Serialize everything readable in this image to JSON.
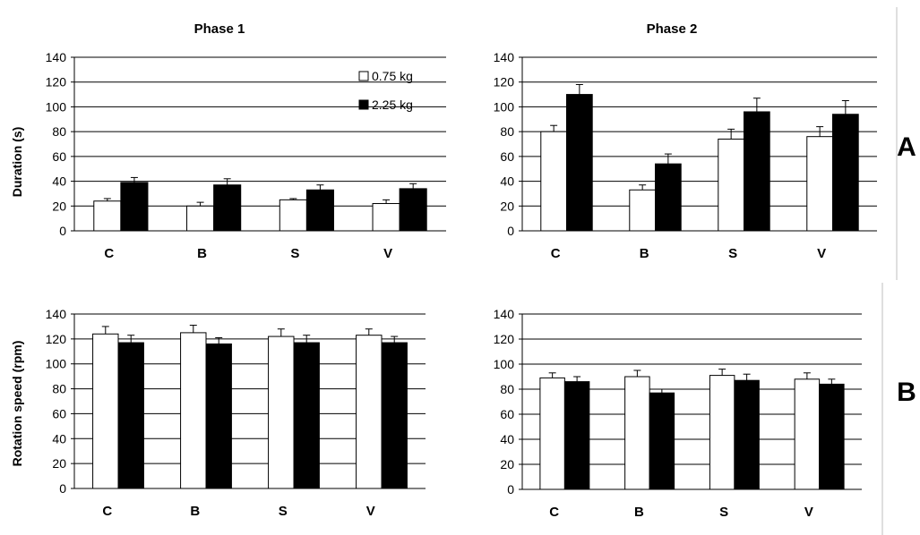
{
  "figure": {
    "panel_labels": [
      "A",
      "B"
    ],
    "col_titles": [
      "Phase 1",
      "Phase 2"
    ],
    "row_ylabels": [
      "Duration (s)",
      "Rotation speed (rpm)"
    ],
    "legend": [
      "0.75 kg",
      "2.25 kg"
    ]
  },
  "colors": {
    "series_a": "#ffffff",
    "series_b": "#000000",
    "stroke": "#000000",
    "grid": "#000000"
  },
  "chart_data": [
    {
      "type": "bar",
      "title": "Phase 1",
      "ylabel": "Duration (s)",
      "xlabel": "",
      "categories": [
        "C",
        "B",
        "S",
        "V"
      ],
      "ylim": [
        0,
        140
      ],
      "yticks": [
        0,
        20,
        40,
        60,
        80,
        100,
        120,
        140
      ],
      "grid": true,
      "legend_position": "top-right",
      "series": [
        {
          "name": "0.75 kg",
          "values": [
            24,
            20,
            25,
            22
          ],
          "errors": [
            2,
            3,
            1,
            3
          ]
        },
        {
          "name": "2.25 kg",
          "values": [
            39,
            37,
            33,
            34
          ],
          "errors": [
            4,
            5,
            4,
            4
          ]
        }
      ]
    },
    {
      "type": "bar",
      "title": "Phase 2",
      "ylabel": "",
      "xlabel": "",
      "categories": [
        "C",
        "B",
        "S",
        "V"
      ],
      "ylim": [
        0,
        140
      ],
      "yticks": [
        0,
        20,
        40,
        60,
        80,
        100,
        120,
        140
      ],
      "grid": true,
      "series": [
        {
          "name": "0.75 kg",
          "values": [
            80,
            33,
            74,
            76
          ],
          "errors": [
            5,
            4,
            8,
            8
          ]
        },
        {
          "name": "2.25 kg",
          "values": [
            110,
            54,
            96,
            94
          ],
          "errors": [
            8,
            8,
            11,
            11
          ]
        }
      ]
    },
    {
      "type": "bar",
      "title": "",
      "ylabel": "Rotation speed (rpm)",
      "xlabel": "",
      "categories": [
        "C",
        "B",
        "S",
        "V"
      ],
      "ylim": [
        0,
        140
      ],
      "yticks": [
        0,
        20,
        40,
        60,
        80,
        100,
        120,
        140
      ],
      "grid": true,
      "series": [
        {
          "name": "0.75 kg",
          "values": [
            124,
            125,
            122,
            123
          ],
          "errors": [
            6,
            6,
            6,
            5
          ]
        },
        {
          "name": "2.25 kg",
          "values": [
            117,
            116,
            117,
            117
          ],
          "errors": [
            6,
            5,
            6,
            5
          ]
        }
      ]
    },
    {
      "type": "bar",
      "title": "",
      "ylabel": "",
      "xlabel": "",
      "categories": [
        "C",
        "B",
        "S",
        "V"
      ],
      "ylim": [
        0,
        140
      ],
      "yticks": [
        0,
        20,
        40,
        60,
        80,
        100,
        120,
        140
      ],
      "grid": true,
      "series": [
        {
          "name": "0.75 kg",
          "values": [
            89,
            90,
            91,
            88
          ],
          "errors": [
            4,
            5,
            5,
            5
          ]
        },
        {
          "name": "2.25 kg",
          "values": [
            86,
            77,
            87,
            84
          ],
          "errors": [
            4,
            3,
            5,
            4
          ]
        }
      ]
    }
  ]
}
